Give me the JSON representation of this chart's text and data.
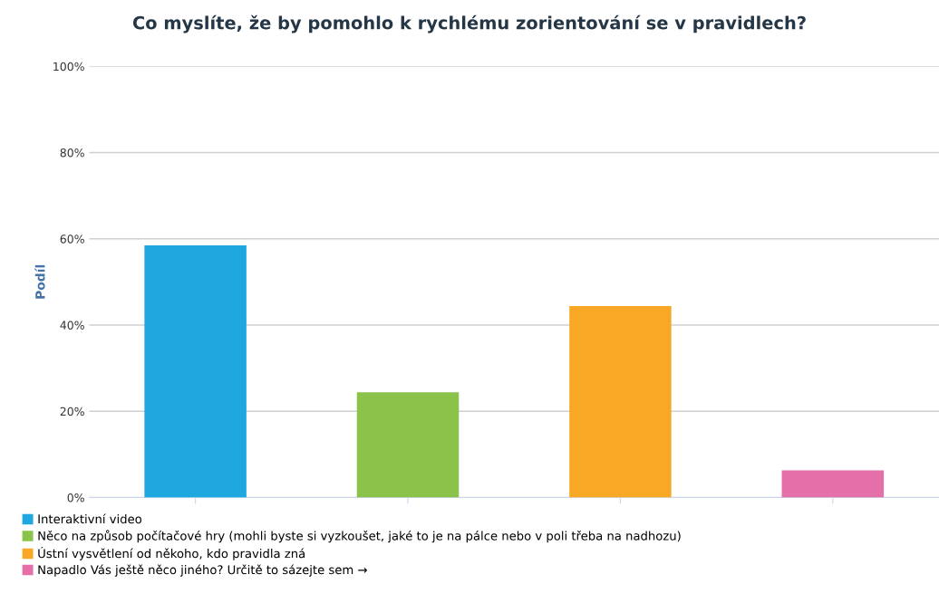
{
  "chart_data": {
    "type": "bar",
    "title": "Co myslíte, že by pomohlo k rychlému zorientování se v pravidlech?",
    "ylabel": "Podíl",
    "categories": [
      null,
      null,
      null,
      null
    ],
    "series": [
      {
        "name": "Interaktivní video",
        "color": "#1fa8df",
        "values": [
          58.5,
          null,
          null,
          null
        ]
      },
      {
        "name": "Něco na způsob počítačové hry (mohli byste si vyzkoušet, jaké to je na pálce nebo v poli třeba na nadhozu)",
        "color": "#8bc34a",
        "values": [
          null,
          24.4,
          null,
          null
        ]
      },
      {
        "name": "Ústní vysvětlení od někoho, kdo pravidla zná",
        "color": "#f9a825",
        "values": [
          null,
          null,
          44.4,
          null
        ]
      },
      {
        "name": "Napadlo Vás ještě něco jiného? Určitě to sázejte sem →",
        "color": "#e56fa9",
        "values": [
          null,
          null,
          null,
          6.3
        ]
      }
    ],
    "ylim": [
      0,
      100
    ],
    "yticks": [
      {
        "value": 0,
        "label": "0%"
      },
      {
        "value": 20,
        "label": "20%"
      },
      {
        "value": 40,
        "label": "40%"
      },
      {
        "value": 60,
        "label": "60%"
      },
      {
        "value": 80,
        "label": "80%"
      },
      {
        "value": 100,
        "label": "100%"
      }
    ],
    "grid": "y",
    "legend": "bottom"
  }
}
